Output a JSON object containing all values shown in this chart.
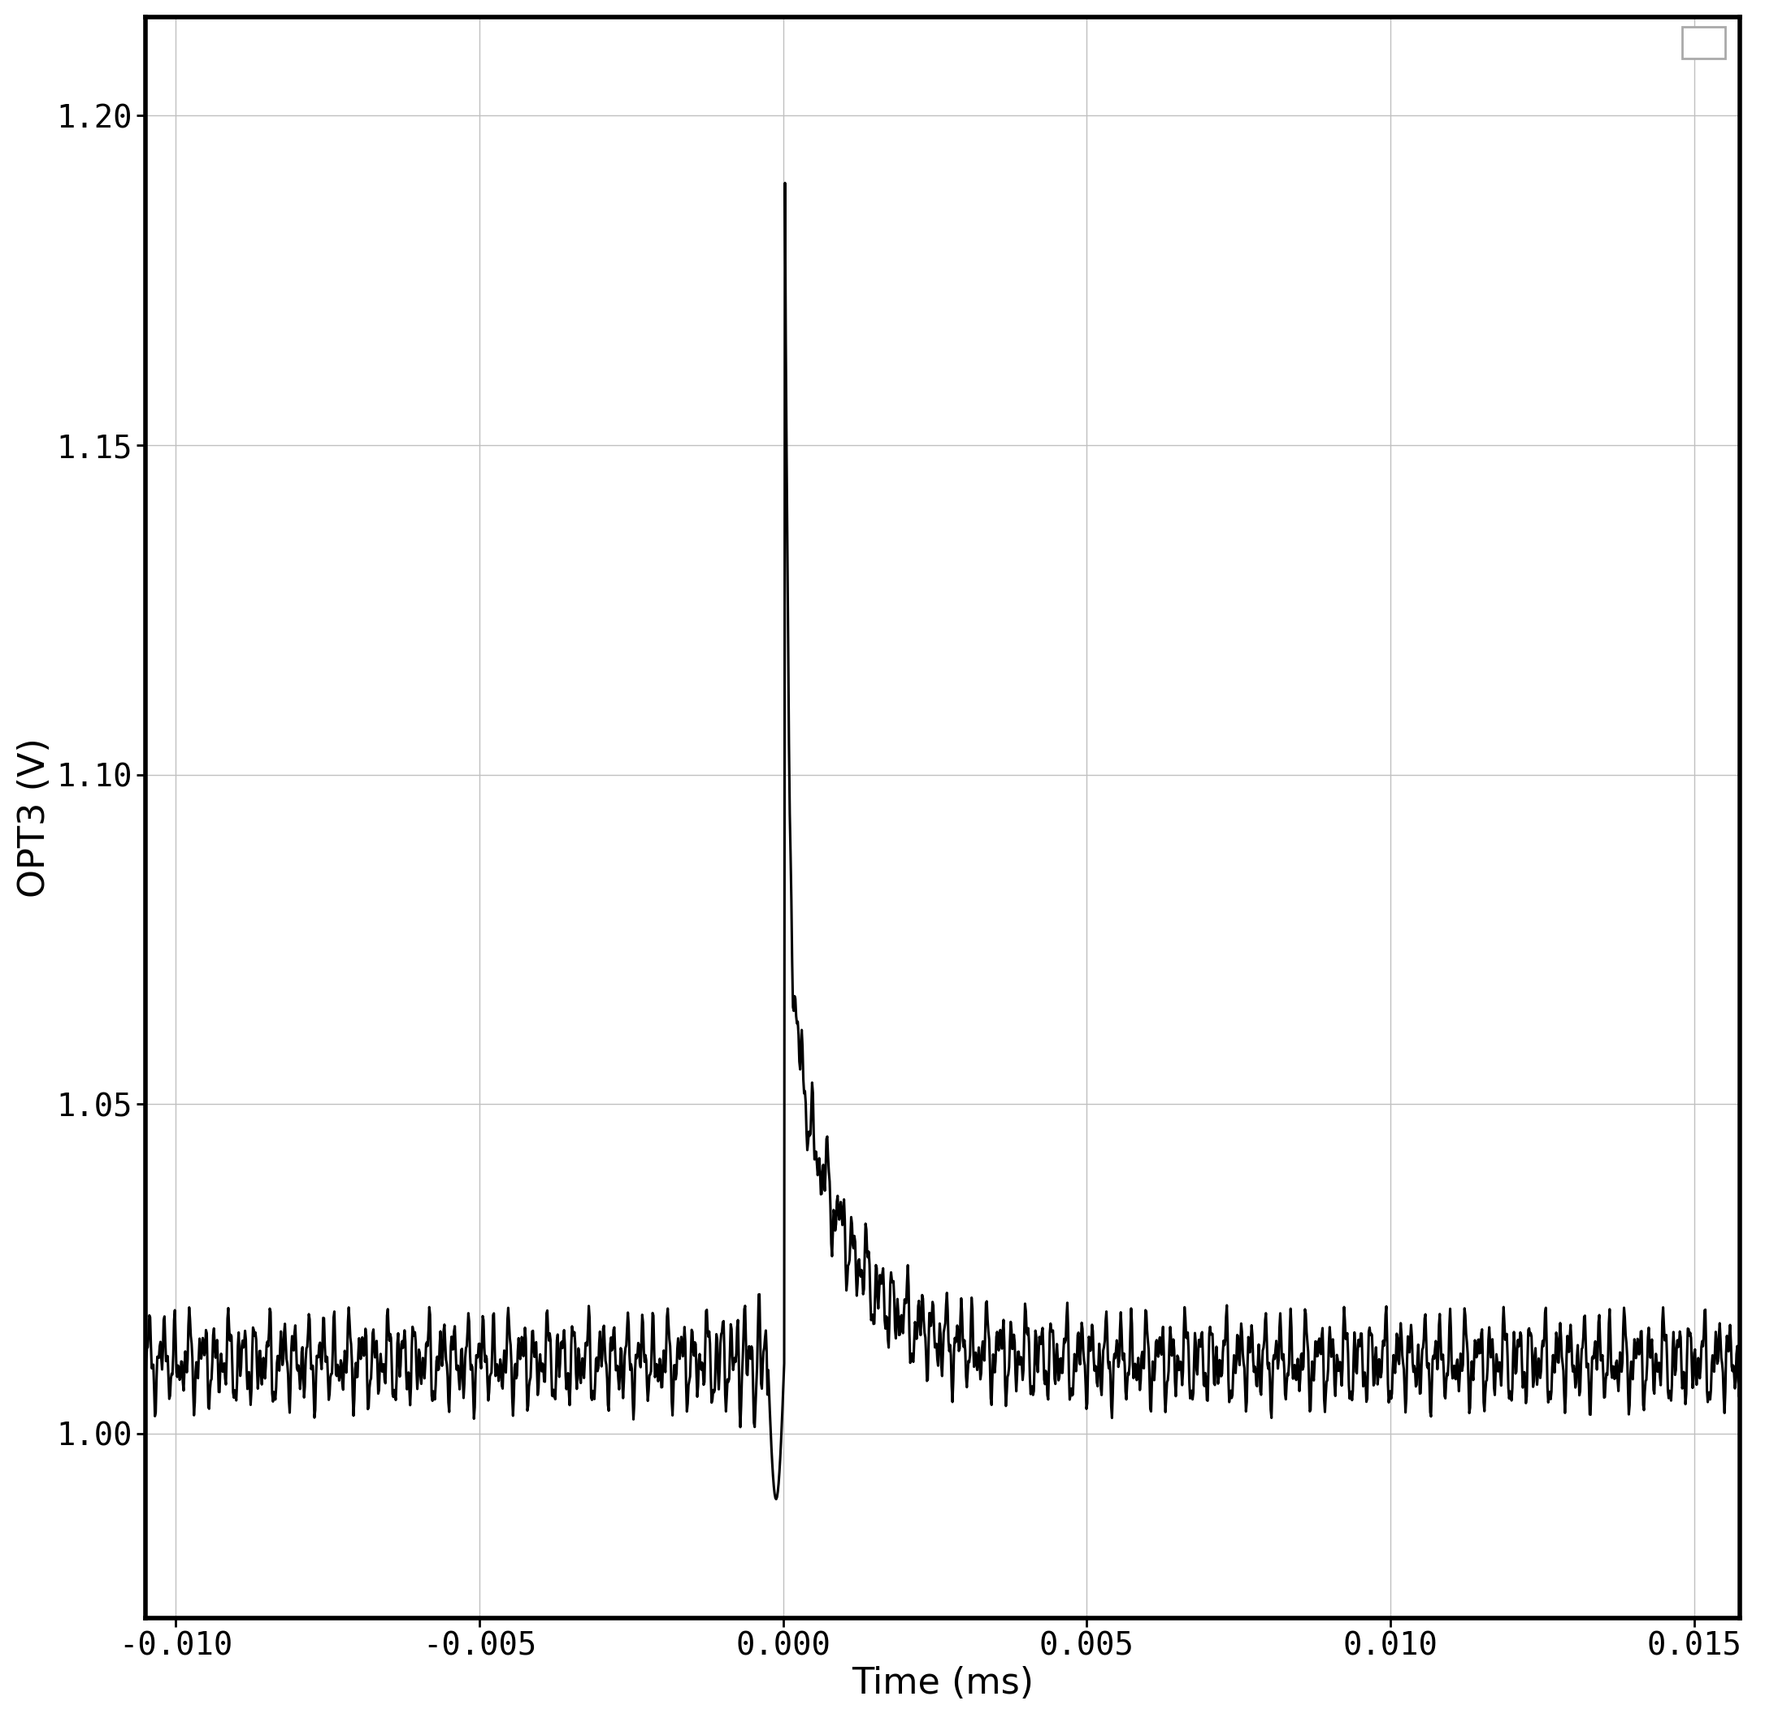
{
  "xlabel": "Time (ms)",
  "ylabel": "OPT3 (V)",
  "xlim": [
    -0.0105,
    0.01575
  ],
  "ylim": [
    0.972,
    1.215
  ],
  "xticks": [
    -0.01,
    -0.005,
    0.0,
    0.005,
    0.01,
    0.015
  ],
  "yticks": [
    1.0,
    1.05,
    1.1,
    1.15,
    1.2
  ],
  "xtick_labels": [
    "-0.010",
    "-0.005",
    "0.000",
    "0.005",
    "0.010",
    "0.015"
  ],
  "ytick_labels": [
    "1.00",
    "1.05",
    "1.10",
    "1.15",
    "1.20"
  ],
  "line_color": "#000000",
  "line_width": 2.2,
  "background_color": "#ffffff",
  "grid_color": "#c0c0c0",
  "grid_linewidth": 1.0,
  "spine_linewidth": 4.0,
  "tick_fontsize": 28,
  "label_fontsize": 32,
  "base_level": 1.011,
  "noise_amp": 0.0018,
  "spike_peak": 1.202,
  "dip_val": 0.99,
  "decay_tau": 0.0012
}
